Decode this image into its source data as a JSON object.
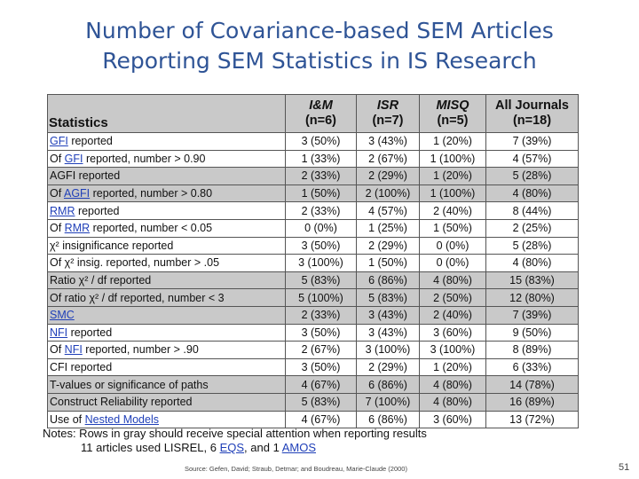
{
  "title": {
    "line1": "Number of Covariance-based SEM Articles",
    "line2": "Reporting SEM Statistics in IS Research"
  },
  "table": {
    "headers": {
      "statistics": "Statistics",
      "c1_name": "I&M",
      "c1_n": "(n=6)",
      "c2_name": "ISR",
      "c2_n": "(n=7)",
      "c3_name": "MISQ",
      "c3_n": "(n=5)",
      "c4_name": "All Journals",
      "c4_n": "(n=18)"
    },
    "rows": [
      {
        "gray": false,
        "pre": "",
        "link": "GFI",
        "post": " reported",
        "values": [
          "3 (50%)",
          "3 (43%)",
          "1 (20%)",
          "7 (39%)"
        ]
      },
      {
        "gray": false,
        "pre": "Of ",
        "link": "GFI",
        "post": " reported, number > 0.90",
        "values": [
          "1 (33%)",
          "2 (67%)",
          "1 (100%)",
          "4 (57%)"
        ]
      },
      {
        "gray": true,
        "pre": "AGFI reported",
        "link": "",
        "post": "",
        "values": [
          "2 (33%)",
          "2 (29%)",
          "1 (20%)",
          "5 (28%)"
        ]
      },
      {
        "gray": true,
        "pre": "Of ",
        "link": "AGFI",
        "post": " reported, number > 0.80",
        "values": [
          "1 (50%)",
          "2 (100%)",
          "1 (100%)",
          "4 (80%)"
        ]
      },
      {
        "gray": false,
        "pre": "",
        "link": "RMR",
        "post": " reported",
        "values": [
          "2 (33%)",
          "4 (57%)",
          "2 (40%)",
          "8 (44%)"
        ]
      },
      {
        "gray": false,
        "pre": "Of ",
        "link": "RMR",
        "post": " reported, number < 0.05",
        "values": [
          "0 (0%)",
          "1 (25%)",
          "1 (50%)",
          "2 (25%)"
        ]
      },
      {
        "gray": false,
        "pre": "χ² insignificance reported",
        "link": "",
        "post": "",
        "values": [
          "3 (50%)",
          "2 (29%)",
          "0 (0%)",
          "5 (28%)"
        ]
      },
      {
        "gray": false,
        "pre": "Of χ² insig. reported, number > .05",
        "link": "",
        "post": "",
        "values": [
          "3 (100%)",
          "1 (50%)",
          "0 (0%)",
          "4 (80%)"
        ]
      },
      {
        "gray": true,
        "pre": "Ratio χ² / df reported",
        "link": "",
        "post": "",
        "values": [
          "5 (83%)",
          "6 (86%)",
          "4 (80%)",
          "15 (83%)"
        ]
      },
      {
        "gray": true,
        "pre": "Of ratio χ² / df reported, number < 3",
        "link": "",
        "post": "",
        "values": [
          "5 (100%)",
          "5 (83%)",
          "2 (50%)",
          "12 (80%)"
        ]
      },
      {
        "gray": true,
        "pre": "",
        "link": "SMC",
        "post": "",
        "values": [
          "2 (33%)",
          "3 (43%)",
          "2 (40%)",
          "7 (39%)"
        ]
      },
      {
        "gray": false,
        "pre": "",
        "link": "NFI",
        "post": " reported",
        "values": [
          "3 (50%)",
          "3 (43%)",
          "3 (60%)",
          "9 (50%)"
        ]
      },
      {
        "gray": false,
        "pre": "Of ",
        "link": "NFI",
        "post": " reported, number > .90",
        "values": [
          "2 (67%)",
          "3 (100%)",
          "3 (100%)",
          "8 (89%)"
        ]
      },
      {
        "gray": false,
        "pre": "CFI reported",
        "link": "",
        "post": "",
        "values": [
          "3 (50%)",
          "2 (29%)",
          "1 (20%)",
          "6 (33%)"
        ]
      },
      {
        "gray": true,
        "pre": "T-values or significance of paths",
        "link": "",
        "post": "",
        "values": [
          "4 (67%)",
          "6 (86%)",
          "4 (80%)",
          "14 (78%)"
        ]
      },
      {
        "gray": true,
        "pre": "Construct Reliability reported",
        "link": "",
        "post": "",
        "values": [
          "5 (83%)",
          "7 (100%)",
          "4 (80%)",
          "16 (89%)"
        ]
      },
      {
        "gray": false,
        "pre": "Use of ",
        "link": "Nested Models",
        "post": "",
        "values": [
          "4 (67%)",
          "6 (86%)",
          "3 (60%)",
          "13 (72%)"
        ]
      }
    ]
  },
  "notes": {
    "line1": "Notes: Rows in gray should receive special attention when reporting results",
    "line2_pre": "11 articles used LISREL, 6 ",
    "line2_link1": "EQS",
    "line2_mid": ", and 1 ",
    "line2_link2": "AMOS"
  },
  "source": "Source: Gefen, David; Straub, Detmar; and Boudreau, Marie-Claude (2000)",
  "page_number": "51"
}
